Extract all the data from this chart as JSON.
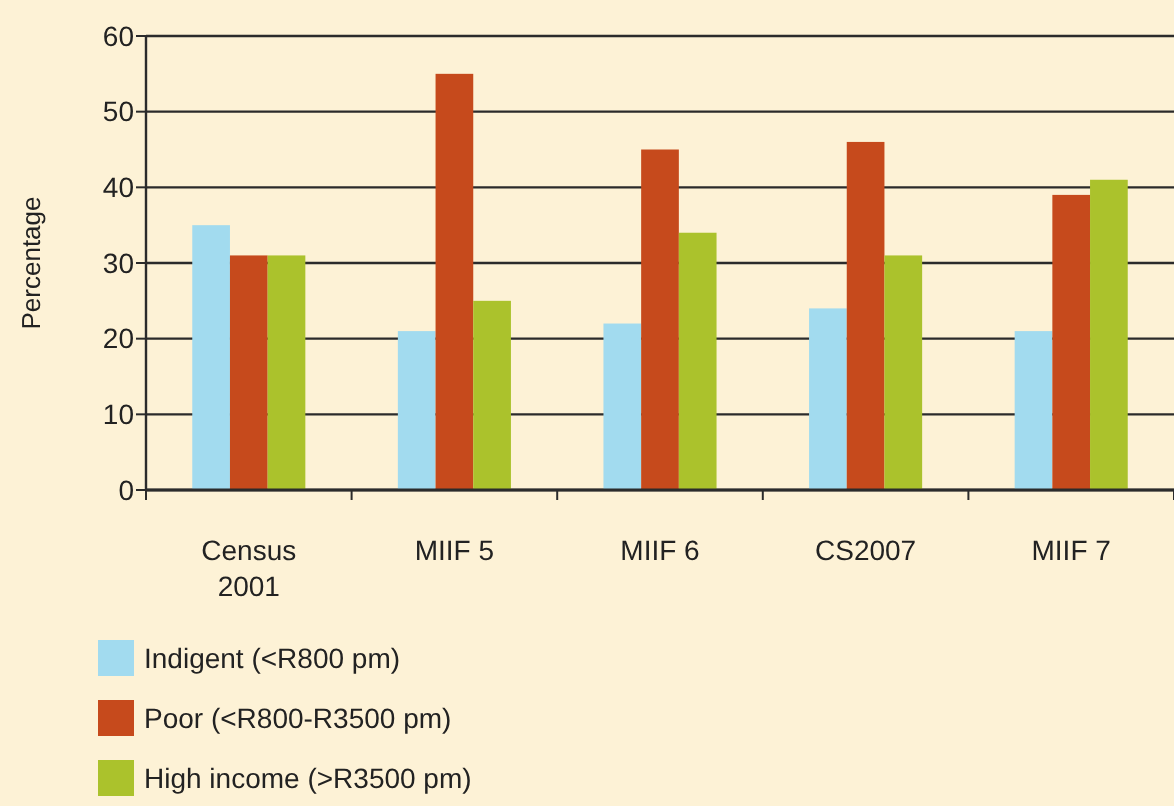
{
  "chart_data": {
    "type": "bar",
    "ylabel": "Percentage",
    "categories": [
      "Census\n2001",
      "MIIF 5",
      "MIIF 6",
      "CS2007",
      "MIIF 7"
    ],
    "series": [
      {
        "name": "Indigent (<R800 pm)",
        "color": "#a2dbef",
        "values": [
          35,
          21,
          22,
          24,
          21
        ]
      },
      {
        "name": "Poor (<R800-R3500 pm)",
        "color": "#c64a1c",
        "values": [
          31,
          55,
          45,
          46,
          39
        ]
      },
      {
        "name": "High income (>R3500 pm)",
        "color": "#abc22c",
        "values": [
          31,
          25,
          34,
          31,
          41
        ]
      }
    ],
    "ylim": [
      0,
      60
    ],
    "yticks": [
      0,
      10,
      20,
      30,
      40,
      50,
      60
    ],
    "grid": "y",
    "legend": "bottom left"
  }
}
